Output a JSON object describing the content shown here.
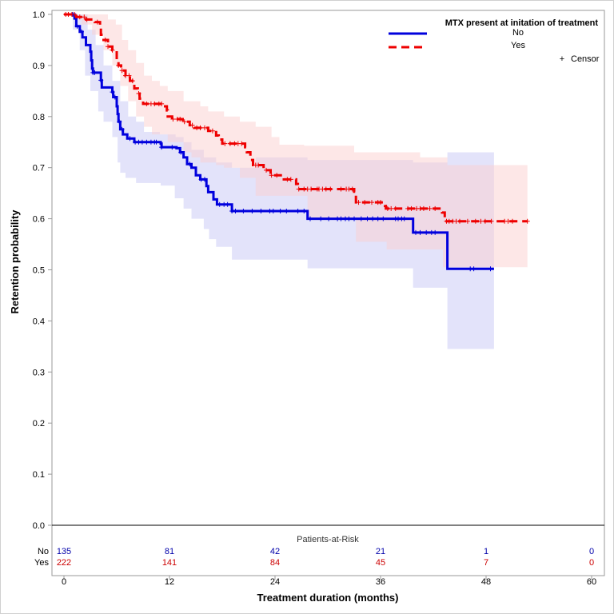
{
  "chart_data": {
    "type": "line",
    "subtype": "kaplan-meier step",
    "title": "",
    "xlabel": "Treatment duration (months)",
    "ylabel": "Retention probability",
    "xlim": [
      0,
      60
    ],
    "ylim": [
      0,
      1.0
    ],
    "xticks": [
      "0",
      "12",
      "24",
      "36",
      "48",
      "60"
    ],
    "yticks": [
      "0.0",
      "0.1",
      "0.2",
      "0.3",
      "0.4",
      "0.5",
      "0.6",
      "0.7",
      "0.8",
      "0.9",
      "1.0"
    ],
    "grid": false,
    "legend": {
      "title": "MTX present at initation of treatment",
      "position": "top-right",
      "entries": [
        {
          "name": "No",
          "color": "#0000dd",
          "style": "solid"
        },
        {
          "name": "Yes",
          "color": "#ee0000",
          "style": "dashed"
        }
      ],
      "censor_label": "Censor",
      "censor_symbol": "+"
    },
    "series": [
      {
        "name": "No",
        "color": "#0000dd",
        "band_color": "#c8c8f5",
        "steps": [
          [
            0.0,
            1.0
          ],
          [
            1.2,
            0.992
          ],
          [
            1.4,
            0.977
          ],
          [
            1.8,
            0.966
          ],
          [
            2.1,
            0.955
          ],
          [
            2.5,
            0.94
          ],
          [
            3.0,
            0.927
          ],
          [
            3.1,
            0.91
          ],
          [
            3.2,
            0.894
          ],
          [
            3.3,
            0.886
          ],
          [
            4.2,
            0.871
          ],
          [
            4.3,
            0.857
          ],
          [
            5.5,
            0.848
          ],
          [
            5.6,
            0.838
          ],
          [
            6.0,
            0.82
          ],
          [
            6.1,
            0.805
          ],
          [
            6.2,
            0.79
          ],
          [
            6.4,
            0.775
          ],
          [
            6.7,
            0.765
          ],
          [
            7.2,
            0.757
          ],
          [
            8.0,
            0.75
          ],
          [
            11.0,
            0.747
          ],
          [
            11.1,
            0.74
          ],
          [
            12.8,
            0.738
          ],
          [
            13.2,
            0.73
          ],
          [
            13.6,
            0.72
          ],
          [
            14.0,
            0.707
          ],
          [
            14.5,
            0.7
          ],
          [
            15.0,
            0.685
          ],
          [
            15.5,
            0.677
          ],
          [
            16.2,
            0.664
          ],
          [
            16.4,
            0.652
          ],
          [
            17.0,
            0.638
          ],
          [
            17.4,
            0.628
          ],
          [
            19.1,
            0.615
          ],
          [
            27.7,
            0.6
          ],
          [
            39.7,
            0.573
          ],
          [
            43.6,
            0.502
          ]
        ],
        "end": 48.9,
        "ci_upper": [
          [
            0.0,
            1.0
          ],
          [
            1.8,
            1.0
          ],
          [
            2.7,
            0.97
          ],
          [
            3.6,
            0.94
          ],
          [
            4.5,
            0.9
          ],
          [
            5.5,
            0.87
          ],
          [
            6.4,
            0.83
          ],
          [
            7.3,
            0.8
          ],
          [
            8.2,
            0.79
          ],
          [
            9.1,
            0.77
          ],
          [
            10.9,
            0.765
          ],
          [
            12.7,
            0.76
          ],
          [
            13.6,
            0.75
          ],
          [
            14.5,
            0.735
          ],
          [
            15.9,
            0.72
          ],
          [
            17.3,
            0.71
          ],
          [
            19.1,
            0.7
          ],
          [
            21.8,
            0.72
          ],
          [
            27.7,
            0.715
          ],
          [
            39.7,
            0.71
          ],
          [
            43.6,
            0.73
          ]
        ],
        "ci_lower": [
          [
            0.0,
            1.0
          ],
          [
            1.0,
            0.97
          ],
          [
            1.8,
            0.93
          ],
          [
            2.4,
            0.88
          ],
          [
            3.0,
            0.85
          ],
          [
            3.9,
            0.81
          ],
          [
            4.5,
            0.79
          ],
          [
            5.5,
            0.76
          ],
          [
            6.1,
            0.71
          ],
          [
            6.4,
            0.69
          ],
          [
            7.0,
            0.68
          ],
          [
            8.2,
            0.67
          ],
          [
            11.0,
            0.665
          ],
          [
            12.6,
            0.64
          ],
          [
            13.6,
            0.62
          ],
          [
            14.5,
            0.6
          ],
          [
            15.9,
            0.58
          ],
          [
            16.5,
            0.56
          ],
          [
            17.3,
            0.545
          ],
          [
            19.1,
            0.52
          ],
          [
            27.7,
            0.503
          ],
          [
            39.7,
            0.465
          ],
          [
            43.6,
            0.345
          ]
        ]
      },
      {
        "name": "Yes",
        "color": "#ee0000",
        "band_color": "#fbd0d0",
        "steps": [
          [
            0.0,
            1.0
          ],
          [
            1.4,
            0.995
          ],
          [
            2.5,
            0.99
          ],
          [
            3.5,
            0.985
          ],
          [
            4.1,
            0.975
          ],
          [
            4.2,
            0.96
          ],
          [
            4.5,
            0.95
          ],
          [
            5.0,
            0.937
          ],
          [
            5.5,
            0.93
          ],
          [
            6.0,
            0.91
          ],
          [
            6.2,
            0.9
          ],
          [
            6.5,
            0.89
          ],
          [
            7.0,
            0.88
          ],
          [
            7.5,
            0.87
          ],
          [
            8.0,
            0.855
          ],
          [
            8.4,
            0.845
          ],
          [
            8.6,
            0.835
          ],
          [
            9.0,
            0.825
          ],
          [
            11.5,
            0.82
          ],
          [
            11.7,
            0.812
          ],
          [
            11.8,
            0.8
          ],
          [
            12.3,
            0.795
          ],
          [
            13.5,
            0.79
          ],
          [
            14.3,
            0.783
          ],
          [
            14.8,
            0.778
          ],
          [
            16.4,
            0.772
          ],
          [
            17.3,
            0.763
          ],
          [
            17.6,
            0.755
          ],
          [
            18.0,
            0.747
          ],
          [
            20.6,
            0.74
          ],
          [
            20.8,
            0.73
          ],
          [
            21.2,
            0.715
          ],
          [
            21.5,
            0.705
          ],
          [
            22.7,
            0.695
          ],
          [
            23.5,
            0.685
          ],
          [
            25.0,
            0.677
          ],
          [
            26.4,
            0.668
          ],
          [
            26.6,
            0.658
          ],
          [
            33.0,
            0.653
          ],
          [
            33.2,
            0.632
          ],
          [
            36.5,
            0.625
          ],
          [
            36.6,
            0.62
          ],
          [
            43.0,
            0.612
          ],
          [
            43.3,
            0.595
          ]
        ],
        "end": 52.7,
        "ci_upper": [
          [
            0.0,
            1.0
          ],
          [
            4.5,
            1.0
          ],
          [
            5.0,
            0.99
          ],
          [
            5.9,
            0.98
          ],
          [
            6.6,
            0.95
          ],
          [
            7.3,
            0.93
          ],
          [
            8.2,
            0.905
          ],
          [
            9.1,
            0.88
          ],
          [
            10.0,
            0.87
          ],
          [
            10.9,
            0.86
          ],
          [
            11.8,
            0.85
          ],
          [
            13.6,
            0.83
          ],
          [
            15.5,
            0.82
          ],
          [
            16.4,
            0.81
          ],
          [
            18.2,
            0.8
          ],
          [
            20.0,
            0.79
          ],
          [
            21.8,
            0.78
          ],
          [
            23.6,
            0.76
          ],
          [
            24.5,
            0.745
          ],
          [
            27.3,
            0.743
          ],
          [
            33.0,
            0.73
          ],
          [
            40.5,
            0.72
          ],
          [
            43.6,
            0.705
          ]
        ],
        "ci_lower": [
          [
            0.0,
            1.0
          ],
          [
            2.0,
            0.98
          ],
          [
            3.2,
            0.96
          ],
          [
            4.5,
            0.93
          ],
          [
            5.5,
            0.9
          ],
          [
            6.4,
            0.86
          ],
          [
            7.3,
            0.83
          ],
          [
            8.2,
            0.8
          ],
          [
            9.1,
            0.78
          ],
          [
            10.0,
            0.765
          ],
          [
            11.8,
            0.75
          ],
          [
            13.6,
            0.73
          ],
          [
            14.5,
            0.72
          ],
          [
            15.5,
            0.71
          ],
          [
            17.3,
            0.705
          ],
          [
            18.2,
            0.7
          ],
          [
            20.0,
            0.68
          ],
          [
            21.8,
            0.645
          ],
          [
            27.7,
            0.6
          ],
          [
            33.2,
            0.555
          ],
          [
            36.7,
            0.54
          ],
          [
            43.1,
            0.505
          ]
        ]
      }
    ],
    "censor_marks": {
      "No": [
        1.0,
        1.5,
        2.0,
        3.3,
        3.5,
        4.2,
        5.5,
        5.8,
        6.3,
        6.6,
        7.5,
        8.1,
        8.5,
        8.9,
        9.4,
        9.9,
        10.3,
        10.5,
        11.1,
        12.3,
        13.3,
        14.3,
        15.6,
        16.0,
        17.7,
        18.2,
        18.6,
        19.1,
        19.5,
        20.4,
        21.4,
        22.4,
        23.4,
        23.8,
        24.6,
        25.3,
        26.6,
        27.3,
        28.0,
        29.2,
        30.1,
        31.1,
        31.5,
        32.0,
        32.4,
        33.0,
        33.8,
        34.5,
        35.1,
        35.7,
        36.3,
        37.7,
        38.0,
        38.4,
        38.7,
        40.0,
        40.5,
        41.2,
        41.8,
        42.2,
        46.2,
        46.6,
        48.5
      ],
      "Yes": [
        0.2,
        0.5,
        0.9,
        1.2,
        1.8,
        2.3,
        2.6,
        3.8,
        4.7,
        5.0,
        5.5,
        6.2,
        6.6,
        7.0,
        7.4,
        7.8,
        8.5,
        9.4,
        9.9,
        10.3,
        10.8,
        11.1,
        12.4,
        12.9,
        13.2,
        13.7,
        14.6,
        15.1,
        15.5,
        16.0,
        16.9,
        18.3,
        18.9,
        19.4,
        19.8,
        20.2,
        21.8,
        22.1,
        23.0,
        23.6,
        24.2,
        25.4,
        25.8,
        26.7,
        27.3,
        27.7,
        28.1,
        28.8,
        29.0,
        29.4,
        29.8,
        30.3,
        31.5,
        32.1,
        32.4,
        32.8,
        33.5,
        34.2,
        35.0,
        35.7,
        36.0,
        36.8,
        37.2,
        37.7,
        39.1,
        39.5,
        40.1,
        40.5,
        40.9,
        41.6,
        42.2,
        43.5,
        43.8,
        44.2,
        44.6,
        45.0,
        45.9,
        46.8,
        47.4,
        47.9,
        48.6,
        50.1,
        50.5,
        51.0,
        52.7
      ]
    },
    "risk_table": {
      "title": "Patients-at-Risk",
      "times": [
        0,
        12,
        24,
        36,
        48,
        60
      ],
      "rows": [
        {
          "label": "No",
          "color": "#0000aa",
          "counts": [
            "135",
            "81",
            "42",
            "21",
            "1",
            "0"
          ]
        },
        {
          "label": "Yes",
          "color": "#cc0000",
          "counts": [
            "222",
            "141",
            "84",
            "45",
            "7",
            "0"
          ]
        }
      ]
    }
  }
}
